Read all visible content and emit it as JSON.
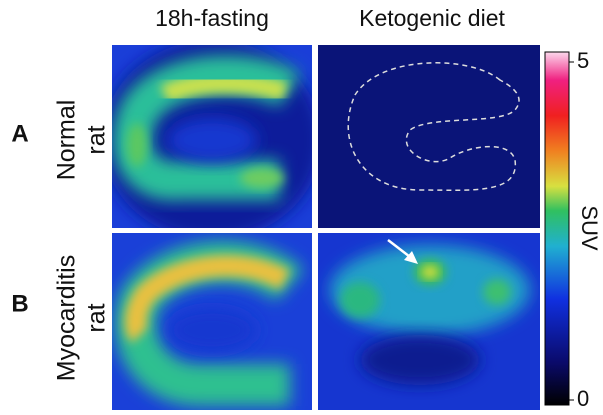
{
  "columns": [
    "18h-fasting",
    "Ketogenic diet"
  ],
  "rows": [
    {
      "letter": "A",
      "label": [
        "Normal",
        "rat"
      ]
    },
    {
      "letter": "B",
      "label": [
        "Myocarditis",
        "rat"
      ]
    }
  ],
  "colorbar": {
    "label": "SUV",
    "lim": [
      0,
      5
    ],
    "ticks": [
      0,
      5
    ]
  }
}
